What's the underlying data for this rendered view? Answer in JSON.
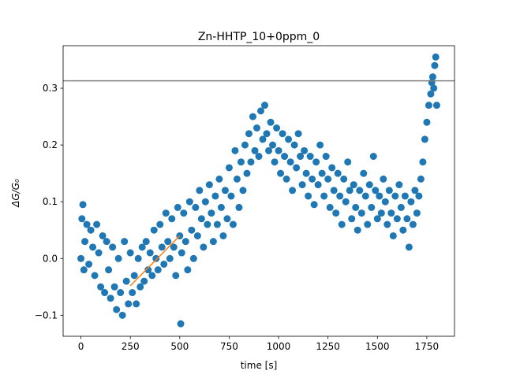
{
  "chart_data": {
    "type": "scatter",
    "title": "Zn-HHTP_10+0ppm_0",
    "xlabel": "time [s]",
    "ylabel": "ΔG/G₀",
    "xlim": [
      -90,
      1890
    ],
    "ylim": [
      -0.137,
      0.375
    ],
    "x_ticks": [
      0,
      250,
      500,
      750,
      1000,
      1250,
      1500,
      1750
    ],
    "y_ticks": [
      -0.1,
      0.0,
      0.1,
      0.2,
      0.3
    ],
    "y_tick_labels": [
      "−0.1",
      "0.0",
      "0.1",
      "0.2",
      "0.3"
    ],
    "grid": false,
    "legend": "none",
    "series": [
      {
        "type": "scatter",
        "color": "#1f77b4",
        "points": [
          [
            0,
            0.0
          ],
          [
            5,
            0.07
          ],
          [
            10,
            0.095
          ],
          [
            15,
            -0.02
          ],
          [
            20,
            0.03
          ],
          [
            30,
            0.06
          ],
          [
            40,
            -0.01
          ],
          [
            50,
            0.05
          ],
          [
            60,
            0.02
          ],
          [
            70,
            -0.03
          ],
          [
            80,
            0.06
          ],
          [
            90,
            0.01
          ],
          [
            100,
            -0.05
          ],
          [
            110,
            0.04
          ],
          [
            120,
            -0.06
          ],
          [
            130,
            0.03
          ],
          [
            140,
            -0.02
          ],
          [
            150,
            -0.07
          ],
          [
            160,
            0.02
          ],
          [
            170,
            -0.05
          ],
          [
            180,
            -0.09
          ],
          [
            190,
            0.0
          ],
          [
            200,
            -0.06
          ],
          [
            210,
            -0.1
          ],
          [
            220,
            0.03
          ],
          [
            230,
            -0.04
          ],
          [
            240,
            -0.08
          ],
          [
            250,
            0.01
          ],
          [
            260,
            -0.06
          ],
          [
            270,
            -0.03
          ],
          [
            280,
            -0.08
          ],
          [
            290,
            0.0
          ],
          [
            300,
            -0.05
          ],
          [
            310,
            0.02
          ],
          [
            320,
            -0.04
          ],
          [
            330,
            0.03
          ],
          [
            340,
            -0.02
          ],
          [
            350,
            0.01
          ],
          [
            360,
            -0.03
          ],
          [
            370,
            0.05
          ],
          [
            380,
            0.0
          ],
          [
            390,
            -0.02
          ],
          [
            400,
            0.06
          ],
          [
            410,
            0.02
          ],
          [
            420,
            -0.01
          ],
          [
            430,
            0.08
          ],
          [
            440,
            0.03
          ],
          [
            450,
            0.0
          ],
          [
            460,
            0.07
          ],
          [
            470,
            0.02
          ],
          [
            480,
            -0.03
          ],
          [
            490,
            0.09
          ],
          [
            500,
            0.04
          ],
          [
            505,
            -0.115
          ],
          [
            510,
            0.01
          ],
          [
            520,
            0.08
          ],
          [
            530,
            0.03
          ],
          [
            540,
            -0.02
          ],
          [
            550,
            0.1
          ],
          [
            560,
            0.05
          ],
          [
            570,
            0.0
          ],
          [
            580,
            0.09
          ],
          [
            590,
            0.04
          ],
          [
            600,
            0.12
          ],
          [
            610,
            0.07
          ],
          [
            620,
            0.02
          ],
          [
            630,
            0.1
          ],
          [
            640,
            0.06
          ],
          [
            650,
            0.13
          ],
          [
            660,
            0.08
          ],
          [
            670,
            0.03
          ],
          [
            680,
            0.11
          ],
          [
            690,
            0.06
          ],
          [
            700,
            0.14
          ],
          [
            710,
            0.09
          ],
          [
            720,
            0.04
          ],
          [
            730,
            0.12
          ],
          [
            740,
            0.07
          ],
          [
            750,
            0.16
          ],
          [
            760,
            0.11
          ],
          [
            770,
            0.06
          ],
          [
            780,
            0.19
          ],
          [
            790,
            0.14
          ],
          [
            800,
            0.09
          ],
          [
            810,
            0.17
          ],
          [
            820,
            0.12
          ],
          [
            830,
            0.2
          ],
          [
            840,
            0.15
          ],
          [
            850,
            0.22
          ],
          [
            860,
            0.17
          ],
          [
            870,
            0.25
          ],
          [
            880,
            0.19
          ],
          [
            890,
            0.23
          ],
          [
            900,
            0.18
          ],
          [
            910,
            0.26
          ],
          [
            920,
            0.21
          ],
          [
            930,
            0.27
          ],
          [
            940,
            0.22
          ],
          [
            950,
            0.19
          ],
          [
            960,
            0.24
          ],
          [
            970,
            0.2
          ],
          [
            980,
            0.17
          ],
          [
            990,
            0.23
          ],
          [
            1000,
            0.19
          ],
          [
            1010,
            0.15
          ],
          [
            1020,
            0.22
          ],
          [
            1030,
            0.18
          ],
          [
            1040,
            0.14
          ],
          [
            1050,
            0.21
          ],
          [
            1060,
            0.17
          ],
          [
            1070,
            0.12
          ],
          [
            1080,
            0.2
          ],
          [
            1090,
            0.16
          ],
          [
            1100,
            0.22
          ],
          [
            1110,
            0.18
          ],
          [
            1120,
            0.13
          ],
          [
            1130,
            0.19
          ],
          [
            1140,
            0.15
          ],
          [
            1150,
            0.11
          ],
          [
            1160,
            0.18
          ],
          [
            1170,
            0.14
          ],
          [
            1180,
            0.095
          ],
          [
            1190,
            0.17
          ],
          [
            1200,
            0.13
          ],
          [
            1210,
            0.2
          ],
          [
            1220,
            0.15
          ],
          [
            1230,
            0.11
          ],
          [
            1240,
            0.18
          ],
          [
            1250,
            0.14
          ],
          [
            1260,
            0.09
          ],
          [
            1270,
            0.16
          ],
          [
            1280,
            0.12
          ],
          [
            1290,
            0.08
          ],
          [
            1300,
            0.15
          ],
          [
            1310,
            0.11
          ],
          [
            1320,
            0.06
          ],
          [
            1330,
            0.14
          ],
          [
            1340,
            0.1
          ],
          [
            1350,
            0.17
          ],
          [
            1360,
            0.12
          ],
          [
            1370,
            0.07
          ],
          [
            1380,
            0.13
          ],
          [
            1390,
            0.09
          ],
          [
            1400,
            0.05
          ],
          [
            1410,
            0.12
          ],
          [
            1420,
            0.08
          ],
          [
            1430,
            0.15
          ],
          [
            1440,
            0.11
          ],
          [
            1450,
            0.06
          ],
          [
            1460,
            0.13
          ],
          [
            1470,
            0.09
          ],
          [
            1480,
            0.18
          ],
          [
            1490,
            0.12
          ],
          [
            1500,
            0.07
          ],
          [
            1510,
            0.11
          ],
          [
            1520,
            0.08
          ],
          [
            1530,
            0.14
          ],
          [
            1540,
            0.1
          ],
          [
            1550,
            0.06
          ],
          [
            1560,
            0.12
          ],
          [
            1570,
            0.08
          ],
          [
            1580,
            0.04
          ],
          [
            1590,
            0.11
          ],
          [
            1600,
            0.07
          ],
          [
            1610,
            0.13
          ],
          [
            1620,
            0.09
          ],
          [
            1630,
            0.05
          ],
          [
            1640,
            0.11
          ],
          [
            1650,
            0.07
          ],
          [
            1660,
            0.02
          ],
          [
            1670,
            0.1
          ],
          [
            1680,
            0.06
          ],
          [
            1690,
            0.12
          ],
          [
            1700,
            0.08
          ],
          [
            1710,
            0.11
          ],
          [
            1720,
            0.14
          ],
          [
            1730,
            0.17
          ],
          [
            1740,
            0.21
          ],
          [
            1750,
            0.24
          ],
          [
            1760,
            0.27
          ],
          [
            1770,
            0.29
          ],
          [
            1775,
            0.31
          ],
          [
            1780,
            0.32
          ],
          [
            1785,
            0.3
          ],
          [
            1790,
            0.34
          ],
          [
            1795,
            0.355
          ],
          [
            1800,
            0.27
          ]
        ]
      },
      {
        "type": "line",
        "color": "#ff7f0e",
        "points": [
          [
            250,
            -0.048
          ],
          [
            500,
            0.04
          ]
        ]
      }
    ],
    "hlines": [
      {
        "y": 0.313,
        "color": "#808080"
      }
    ]
  }
}
